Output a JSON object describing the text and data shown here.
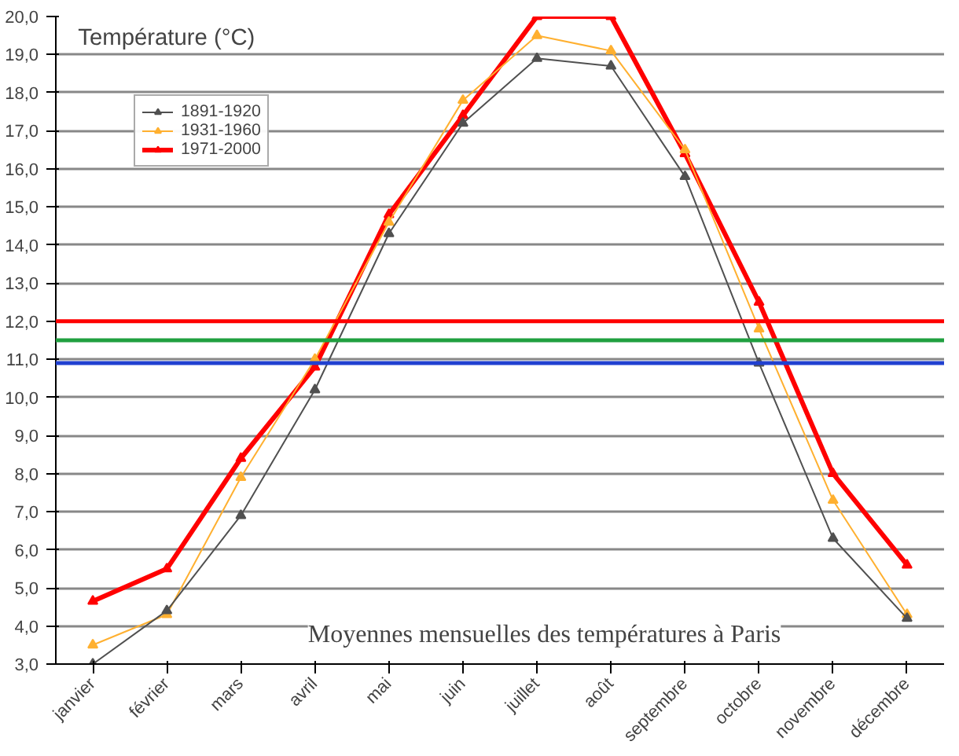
{
  "chart_data": {
    "type": "line",
    "ylabel": "Température (°C)",
    "annotations": [
      "Moyennes mensuelles des températures à Paris"
    ],
    "categories": [
      "janvier",
      "février",
      "mars",
      "avril",
      "mai",
      "juin",
      "juillet",
      "août",
      "septembre",
      "octobre",
      "novembre",
      "décembre"
    ],
    "series": [
      {
        "name": "1891-1920",
        "color": "#505050",
        "values": [
          3.0,
          4.4,
          6.9,
          10.2,
          14.3,
          17.2,
          18.9,
          18.7,
          15.8,
          10.9,
          6.3,
          4.2
        ]
      },
      {
        "name": "1931-1960",
        "color": "#ffb030",
        "values": [
          3.5,
          4.3,
          7.9,
          11.0,
          14.6,
          17.8,
          19.5,
          19.1,
          16.5,
          11.8,
          7.3,
          4.3
        ]
      },
      {
        "name": "1971-2000",
        "color": "#ff0000",
        "values": [
          4.65,
          5.5,
          8.4,
          10.8,
          14.8,
          17.4,
          20.0,
          20.0,
          16.4,
          12.5,
          8.0,
          5.6
        ]
      }
    ],
    "ylim": [
      3.0,
      20.0
    ],
    "yticks": [
      {
        "value": 3,
        "label": "3,0"
      },
      {
        "value": 4,
        "label": "4,0"
      },
      {
        "value": 5,
        "label": "5,0"
      },
      {
        "value": 6,
        "label": "6,0"
      },
      {
        "value": 7,
        "label": "7,0"
      },
      {
        "value": 8,
        "label": "8,0"
      },
      {
        "value": 9,
        "label": "9,0"
      },
      {
        "value": 10,
        "label": "10,0"
      },
      {
        "value": 11,
        "label": "11,0"
      },
      {
        "value": 12,
        "label": "12,0"
      },
      {
        "value": 13,
        "label": "13,0"
      },
      {
        "value": 14,
        "label": "14,0"
      },
      {
        "value": 15,
        "label": "15,0"
      },
      {
        "value": 16,
        "label": "16,0"
      },
      {
        "value": 17,
        "label": "17,0"
      },
      {
        "value": 18,
        "label": "18,0"
      },
      {
        "value": 19,
        "label": "19,0"
      },
      {
        "value": 20,
        "label": "20,0"
      }
    ],
    "ref_lines": [
      {
        "axis": "y",
        "value": 12.0,
        "color": "#ff0000"
      },
      {
        "axis": "y",
        "value": 11.5,
        "color": "#20a040"
      },
      {
        "axis": "y",
        "value": 10.9,
        "color": "#2040d0"
      }
    ],
    "grid": "y",
    "legend": "top left",
    "marker": "triangle",
    "line_style": "solid"
  }
}
